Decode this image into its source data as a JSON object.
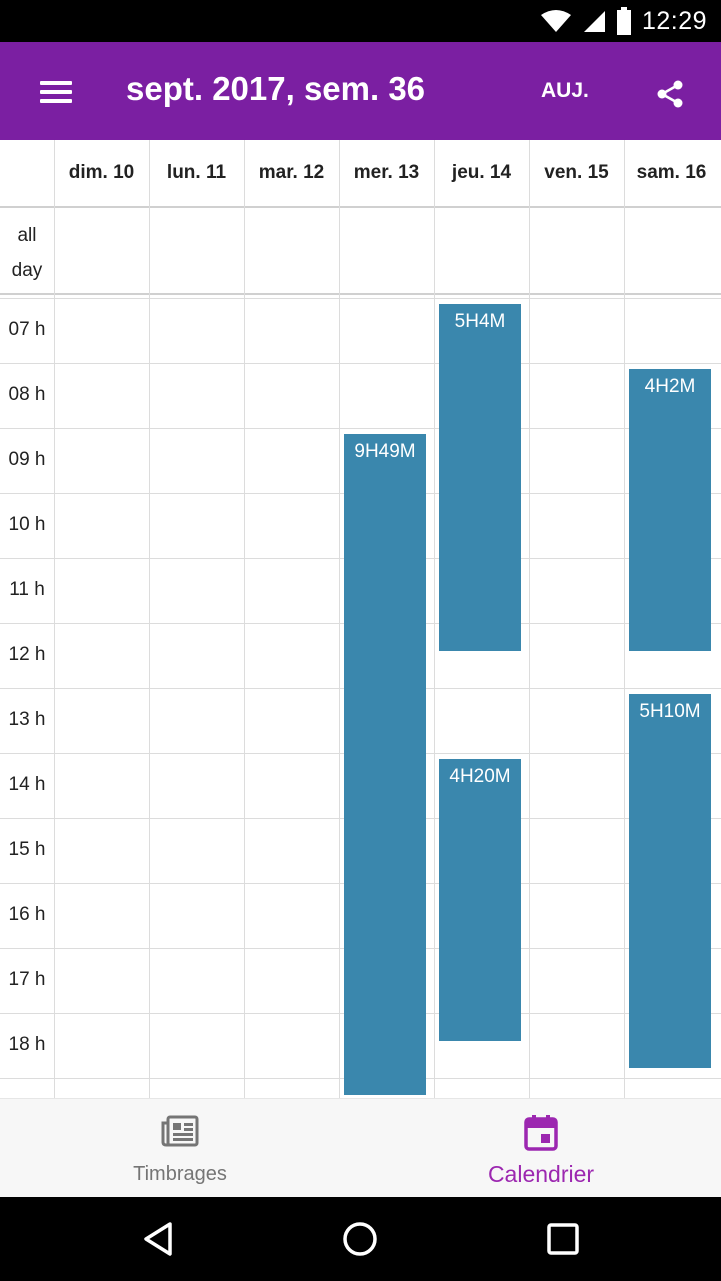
{
  "status_bar": {
    "time": "12:29"
  },
  "app_bar": {
    "title": "sept. 2017, sem. 36",
    "today_label": "AUJ."
  },
  "calendar": {
    "days": [
      "dim. 10",
      "lun. 11",
      "mar. 12",
      "mer. 13",
      "jeu. 14",
      "ven. 15",
      "sam. 16"
    ],
    "all_day_line1": "all",
    "all_day_line2": "day",
    "hours": [
      "07 h",
      "08 h",
      "09 h",
      "10 h",
      "11 h",
      "12 h",
      "13 h",
      "14 h",
      "15 h",
      "16 h",
      "17 h",
      "18 h"
    ],
    "events": [
      {
        "day": 3,
        "start": "09:00",
        "end": "19:15",
        "label": "9H49M"
      },
      {
        "day": 4,
        "start": "07:00",
        "end": "12:25",
        "label": "5H4M"
      },
      {
        "day": 4,
        "start": "14:00",
        "end": "18:25",
        "label": "4H20M"
      },
      {
        "day": 6,
        "start": "08:00",
        "end": "12:25",
        "label": "4H2M"
      },
      {
        "day": 6,
        "start": "13:00",
        "end": "18:50",
        "label": "5H10M"
      }
    ],
    "event_color": "#3a87ad"
  },
  "bottom_nav": {
    "items": [
      {
        "label": "Timbrages",
        "icon": "newspaper-icon",
        "active": false
      },
      {
        "label": "Calendrier",
        "icon": "calendar-icon",
        "active": true
      }
    ],
    "active_color": "#9c27b0"
  },
  "colors": {
    "app_bar": "#7b1fa2"
  }
}
